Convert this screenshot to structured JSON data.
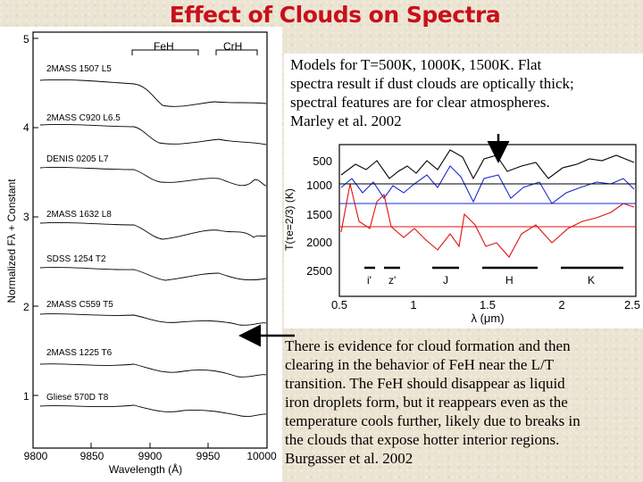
{
  "title": "Effect of Clouds on Spectra",
  "left_figure": {
    "y_axis_label": "Normalized Fλ + Constant",
    "x_axis_label": "Wavelength (Å)",
    "y_ticks": [
      "5",
      "4",
      "3",
      "2",
      "1"
    ],
    "x_ticks": [
      "9800",
      "9850",
      "9900",
      "9950",
      "10000"
    ],
    "band_labels": [
      "FeH",
      "CrH"
    ],
    "spectra": [
      "2MASS 1507 L5",
      "2MASS C920 L6.5",
      "DENIS 0205 L7",
      "2MASS 1632 L8",
      "SDSS 1254 T2",
      "2MASS C559 T5",
      "2MASS 1225 T6",
      "Gliese 570D T8"
    ]
  },
  "right_figure": {
    "y_axis_label": "T(τe=2/3) (K)",
    "x_axis_label": "λ (μm)",
    "y_ticks": [
      "500",
      "1000",
      "1500",
      "2000",
      "2500"
    ],
    "x_ticks": [
      "0.5",
      "1",
      "1.5",
      "2",
      "2.5"
    ],
    "bands": [
      "i'",
      "z'",
      "J",
      "H",
      "K"
    ],
    "series_colors": [
      "#000000",
      "#1a2bd0",
      "#e01010"
    ]
  },
  "top_caption": [
    "Models for T=500K, 1000K, 1500K. Flat",
    "spectra result if dust clouds are optically thick;",
    "spectral features are for clear atmospheres.",
    "Marley et al. 2002"
  ],
  "bottom_caption": [
    "There is evidence for cloud formation and then",
    "clearing in the behavior of FeH near the L/T",
    "transition. The FeH should disappear as liquid",
    "iron droplets form, but it reappears even as the",
    "temperature cools further, likely due to breaks in",
    "the clouds that expose hotter interior regions.",
    "Burgasser et al. 2002"
  ]
}
